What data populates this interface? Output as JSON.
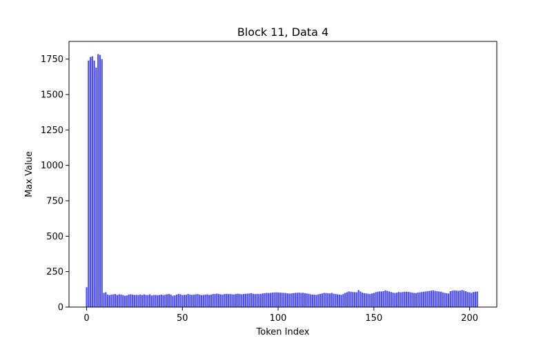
{
  "chart_data": {
    "type": "bar",
    "title": "Block 11, Data 4",
    "xlabel": "Token Index",
    "ylabel": "Max Value",
    "xlim": [
      -9.2,
      214.2
    ],
    "ylim": [
      0,
      1875
    ],
    "xticks": [
      0,
      50,
      100,
      150,
      200
    ],
    "yticks": [
      0,
      250,
      500,
      750,
      1000,
      1250,
      1500,
      1750
    ],
    "bar_color": "#0000ff",
    "bar_alpha": 0.7,
    "grid": false,
    "x": "integers 0..204",
    "values": [
      140,
      1740,
      1765,
      1770,
      1740,
      1690,
      1785,
      1780,
      1750,
      100,
      105,
      88,
      85,
      88,
      90,
      92,
      85,
      90,
      88,
      85,
      80,
      82,
      88,
      90,
      88,
      85,
      86,
      85,
      88,
      85,
      90,
      86,
      85,
      90,
      82,
      85,
      86,
      84,
      85,
      88,
      85,
      87,
      90,
      92,
      88,
      80,
      82,
      88,
      92,
      90,
      85,
      86,
      87,
      92,
      88,
      86,
      88,
      90,
      92,
      88,
      85,
      86,
      88,
      90,
      86,
      88,
      92,
      92,
      95,
      92,
      90,
      88,
      92,
      93,
      92,
      92,
      90,
      89,
      92,
      94,
      92,
      90,
      92,
      94,
      95,
      96,
      98,
      94,
      92,
      93,
      92,
      93,
      96,
      98,
      100,
      99,
      100,
      102,
      103,
      104,
      103,
      102,
      101,
      100,
      99,
      96,
      95,
      97,
      98,
      100,
      101,
      102,
      100,
      101,
      98,
      96,
      94,
      90,
      88,
      87,
      86,
      90,
      93,
      96,
      100,
      99,
      98,
      96,
      100,
      94,
      92,
      90,
      88,
      86,
      92,
      100,
      105,
      110,
      108,
      106,
      105,
      104,
      120,
      110,
      102,
      98,
      96,
      94,
      92,
      96,
      100,
      105,
      108,
      110,
      110,
      112,
      118,
      114,
      110,
      106,
      102,
      100,
      102,
      106,
      104,
      106,
      108,
      108,
      107,
      105,
      102,
      100,
      99,
      102,
      104,
      106,
      108,
      110,
      112,
      114,
      116,
      118,
      114,
      112,
      110,
      108,
      104,
      100,
      98,
      96,
      112,
      116,
      118,
      116,
      114,
      116,
      120,
      116,
      112,
      106,
      104,
      100,
      106,
      108,
      110
    ]
  }
}
